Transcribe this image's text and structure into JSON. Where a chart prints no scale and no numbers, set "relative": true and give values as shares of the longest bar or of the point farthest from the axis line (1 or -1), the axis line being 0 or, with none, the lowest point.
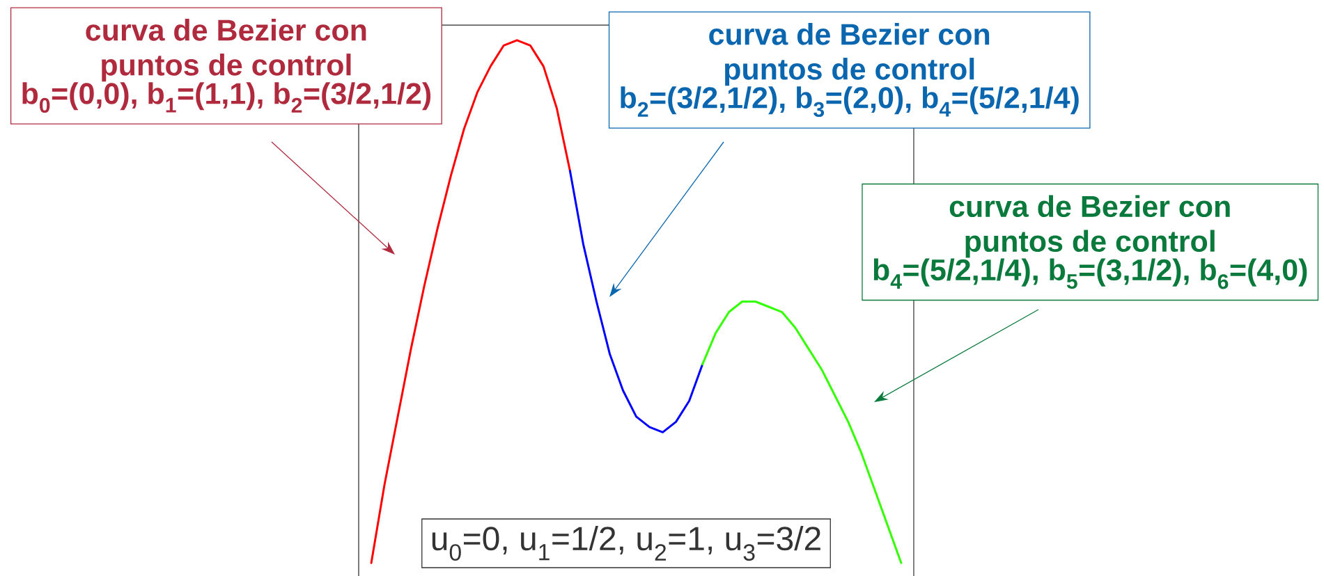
{
  "chart_data": {
    "type": "line",
    "relative": true,
    "categories": [
      null,
      null,
      null,
      null,
      null,
      null,
      null,
      null,
      null,
      null,
      null,
      null,
      null,
      null,
      null,
      null,
      null,
      null,
      null,
      null,
      null,
      null,
      null,
      null,
      null,
      null,
      null,
      null,
      null,
      null,
      null,
      null,
      null,
      null,
      null,
      null,
      null,
      null,
      null,
      null,
      null
    ],
    "series": [
      {
        "color": "#ff0000",
        "values": [
          0,
          0.15,
          0.28,
          0.41,
          0.53,
          0.64,
          0.74,
          0.83,
          0.9,
          0.95,
          0.99,
          1.0,
          0.99,
          0.95,
          0.87,
          0.75,
          null,
          null,
          null,
          null,
          null,
          null,
          null,
          null,
          null,
          null,
          null,
          null,
          null,
          null,
          null,
          null,
          null,
          null,
          null,
          null,
          null,
          null,
          null,
          null,
          null
        ]
      },
      {
        "color": "#0000ff",
        "values": [
          null,
          null,
          null,
          null,
          null,
          null,
          null,
          null,
          null,
          null,
          null,
          null,
          null,
          null,
          null,
          0.75,
          0.61,
          0.5,
          0.4,
          0.33,
          0.28,
          0.26,
          0.25,
          0.27,
          0.31,
          0.38,
          null,
          null,
          null,
          null,
          null,
          null,
          null,
          null,
          null,
          null,
          null,
          null,
          null,
          null,
          null
        ]
      },
      {
        "color": "#33ff00",
        "values": [
          null,
          null,
          null,
          null,
          null,
          null,
          null,
          null,
          null,
          null,
          null,
          null,
          null,
          null,
          null,
          null,
          null,
          null,
          null,
          null,
          null,
          null,
          null,
          null,
          null,
          0.38,
          0.44,
          0.48,
          0.5,
          0.5,
          0.49,
          0.48,
          0.45,
          0.41,
          0.37,
          0.32,
          0.27,
          0.21,
          0.14,
          0.07,
          0
        ]
      }
    ],
    "annotations": [
      "curva de Bezier con puntos de control",
      "b$_{0}$=(0,0), b$_{1}$=(1,1), b$_{2}$=(3/2,1/2)",
      "curva de Bezier con puntos de control",
      "b$_{2}$=(3/2,1/2), b$_{3}$=(2,0), b$_{4}$=(5/2,1/4)",
      "curva de Bezier con puntos de control",
      "b$_{4}$=(5/2,1/4), b$_{5}$=(3,1/2), b$_{6}$=(4,0)",
      "u$_{0}$=0, u$_{1}$=1/2, u$_{2}$=1, u$_{3}$=3/2"
    ]
  }
}
